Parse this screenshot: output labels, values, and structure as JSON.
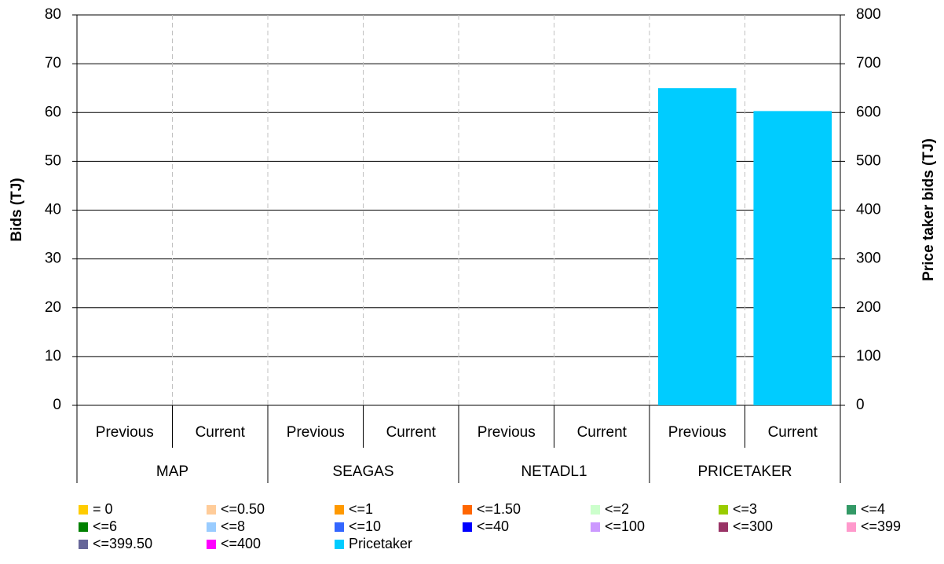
{
  "chart_data": {
    "type": "bar",
    "stacked": true,
    "y_label": "Bids (TJ)",
    "y2_label": "Price taker bids (TJ)",
    "categories": [
      "Previous",
      "Current",
      "Previous",
      "Current",
      "Previous",
      "Current",
      "Previous",
      "Current"
    ],
    "groups": [
      "MAP",
      "SEAGAS",
      "NETADL1",
      "PRICETAKER"
    ],
    "ylim": [
      0,
      80
    ],
    "yticks": [
      0,
      10,
      20,
      30,
      40,
      50,
      60,
      70,
      80
    ],
    "y2lim": [
      0,
      800
    ],
    "y2ticks": [
      0,
      100,
      200,
      300,
      400,
      500,
      600,
      700,
      800
    ],
    "grid": true,
    "series": [
      {
        "name": "= 0",
        "color": "#ffcc00",
        "values": [
          0,
          0,
          0,
          0,
          0,
          0,
          0,
          0
        ]
      },
      {
        "name": "<=0.50",
        "color": "#ffcc99",
        "values": [
          0,
          0,
          0,
          0,
          0,
          0,
          0,
          0
        ]
      },
      {
        "name": "<=1",
        "color": "#ff9900",
        "values": [
          0,
          0,
          0,
          0,
          0,
          0,
          0,
          0
        ]
      },
      {
        "name": "<=1.50",
        "color": "#ff6600",
        "values": [
          0,
          0,
          0,
          0,
          0,
          0,
          0,
          0
        ]
      },
      {
        "name": "<=2",
        "color": "#ccffcc",
        "values": [
          0,
          0,
          0,
          0,
          0,
          0,
          0,
          0
        ]
      },
      {
        "name": "<=3",
        "color": "#99cc00",
        "values": [
          0,
          0,
          0,
          0,
          0,
          0,
          0,
          0
        ]
      },
      {
        "name": "<=4",
        "color": "#339966",
        "values": [
          0,
          0,
          0,
          0,
          0,
          0,
          0,
          0
        ]
      },
      {
        "name": "<=6",
        "color": "#008000",
        "values": [
          0,
          0,
          0,
          0,
          0,
          0,
          0,
          0
        ]
      },
      {
        "name": "<=8",
        "color": "#99ccff",
        "values": [
          0,
          0,
          0,
          0,
          0,
          0,
          0,
          0
        ]
      },
      {
        "name": "<=10",
        "color": "#3366ff",
        "values": [
          0,
          0,
          0,
          0,
          0,
          0,
          0,
          0
        ]
      },
      {
        "name": "<=40",
        "color": "#0000ff",
        "values": [
          0,
          0,
          0,
          0,
          0,
          0,
          0,
          0
        ]
      },
      {
        "name": "<=100",
        "color": "#cc99ff",
        "values": [
          0,
          0,
          0,
          0,
          0,
          0,
          0,
          0
        ]
      },
      {
        "name": "<=300",
        "color": "#993366",
        "values": [
          0,
          0,
          0,
          0,
          0,
          0,
          0,
          0
        ]
      },
      {
        "name": "<=399",
        "color": "#ff99cc",
        "values": [
          0,
          0,
          0,
          0,
          0,
          0,
          0,
          0
        ]
      },
      {
        "name": "<=399.50",
        "color": "#666699",
        "values": [
          0,
          0,
          0,
          0,
          0,
          0,
          0,
          0
        ]
      },
      {
        "name": "<=400",
        "color": "#ff00ff",
        "values": [
          0,
          0,
          0,
          0,
          0,
          0,
          0,
          0
        ]
      },
      {
        "name": "Pricetaker",
        "color": "#00ccff",
        "axis": "y2",
        "values": [
          0,
          0,
          0,
          0,
          0,
          0,
          650,
          603
        ]
      }
    ]
  }
}
